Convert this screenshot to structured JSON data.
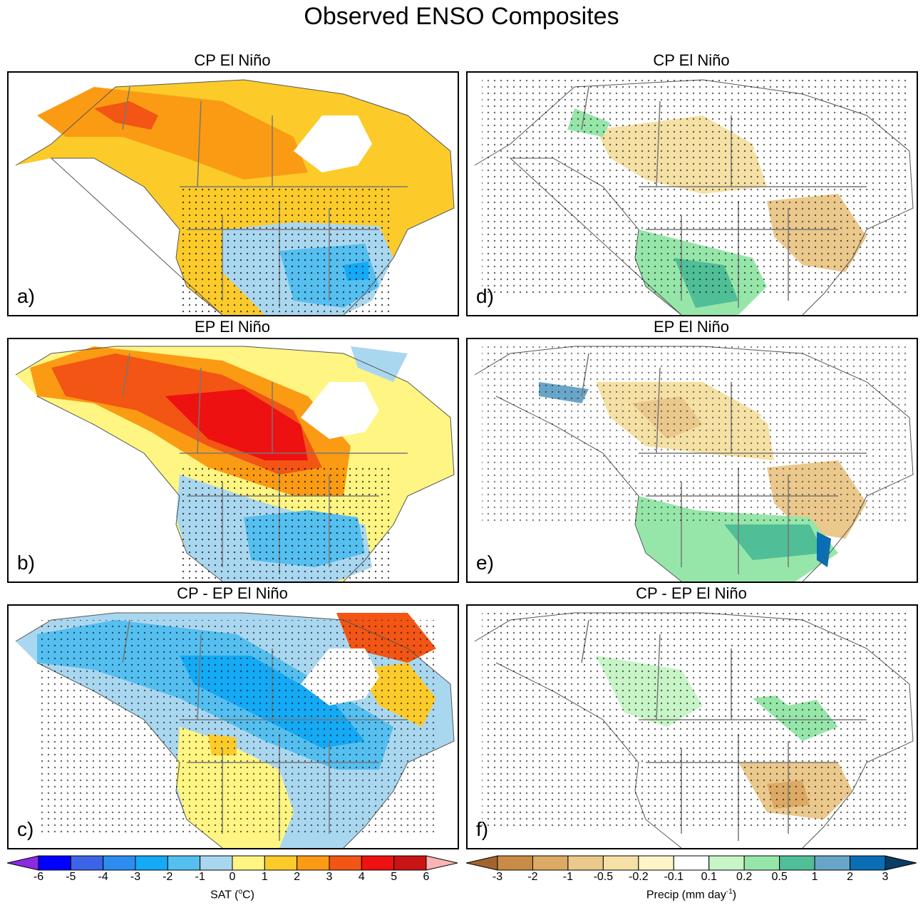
{
  "figure_title": "Observed ENSO Composites",
  "panels": [
    {
      "id": "a",
      "label": "a)",
      "title": "CP El Niño",
      "variable": "SAT",
      "column": "left",
      "row": 0
    },
    {
      "id": "b",
      "label": "b)",
      "title": "EP El Niño",
      "variable": "SAT",
      "column": "left",
      "row": 1
    },
    {
      "id": "c",
      "label": "c)",
      "title": "CP - EP El Niño",
      "variable": "SAT",
      "column": "left",
      "row": 2
    },
    {
      "id": "d",
      "label": "d)",
      "title": "CP El Niño",
      "variable": "Precip",
      "column": "right",
      "row": 0
    },
    {
      "id": "e",
      "label": "e)",
      "title": "EP El Niño",
      "variable": "Precip",
      "column": "right",
      "row": 1
    },
    {
      "id": "f",
      "label": "f)",
      "title": "CP - EP El Niño",
      "variable": "Precip",
      "column": "right",
      "row": 2
    }
  ],
  "colorbars": {
    "sat": {
      "label": "SAT (",
      "label_unit": "o",
      "label_end": "C)",
      "ticks": [
        "-6",
        "-5",
        "-4",
        "-3",
        "-2",
        "-1",
        "0",
        "1",
        "2",
        "3",
        "4",
        "5",
        "6"
      ],
      "colors": [
        "#8a2be2",
        "#0000ff",
        "#3c64e6",
        "#2d8cf0",
        "#14aaf5",
        "#55bff0",
        "#aad7f0",
        "#fff582",
        "#fccb2a",
        "#fa9b13",
        "#f25514",
        "#ee1111",
        "#c81414",
        "#fab4b4"
      ]
    },
    "precip": {
      "label": "Precip (mm day",
      "label_unit": "-1",
      "label_end": ")",
      "ticks": [
        "-3",
        "-2",
        "-1",
        "-0.5",
        "-0.2",
        "-0.1",
        "0.1",
        "0.2",
        "0.5",
        "1",
        "2",
        "3"
      ],
      "colors": [
        "#a0642d",
        "#c88c46",
        "#dcaa64",
        "#ebc88c",
        "#f5e1a5",
        "#fff5c8",
        "#ffffff",
        "#c8f5c8",
        "#96e6aa",
        "#50be96",
        "#69a5c8",
        "#0a6eb4",
        "#0a3c64"
      ]
    }
  }
}
